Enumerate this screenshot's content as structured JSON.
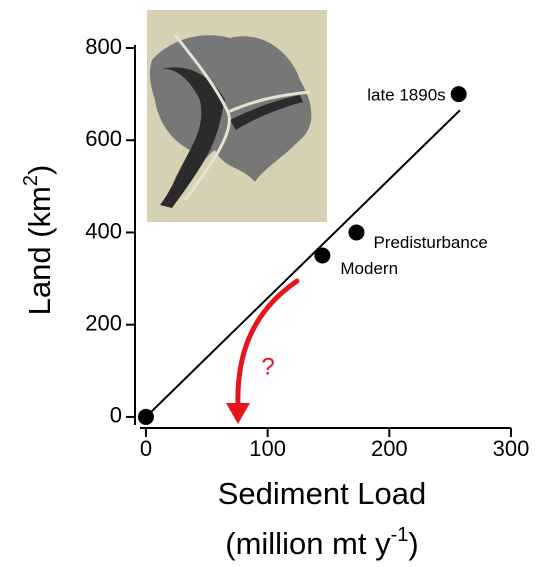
{
  "chart_data": {
    "type": "scatter",
    "ylabel": {
      "text": "Land (km",
      "sup": "2",
      "end": ")"
    },
    "xlabel": "Sediment Load",
    "xlabel_unit": {
      "text": "(million mt y",
      "sup": "-1",
      "end": ")"
    },
    "series": [
      {
        "color": "#000000",
        "x": [
          0,
          145,
          173,
          257
        ],
        "values": [
          0,
          350,
          400,
          700
        ],
        "labels": [
          null,
          "Modern",
          "Predisturbance",
          "late 1890s"
        ]
      }
    ],
    "fit": {
      "color": "#000000",
      "x": [
        0,
        258
      ],
      "y": [
        0,
        665
      ]
    },
    "annotation": {
      "text": "?",
      "color": "#e8141b"
    },
    "xlim": [
      -9,
      300
    ],
    "xticks": [
      0,
      100,
      200,
      300
    ],
    "ylim": [
      -24,
      800
    ],
    "yticks": [
      0,
      200,
      400,
      600,
      800
    ]
  }
}
